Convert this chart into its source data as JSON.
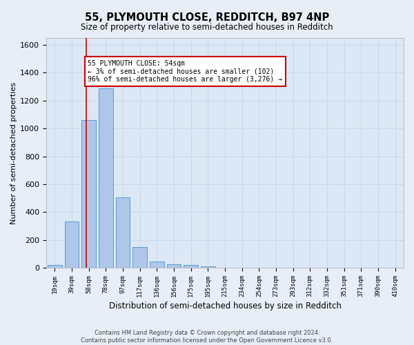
{
  "title": "55, PLYMOUTH CLOSE, REDDITCH, B97 4NP",
  "subtitle": "Size of property relative to semi-detached houses in Redditch",
  "xlabel": "Distribution of semi-detached houses by size in Redditch",
  "ylabel": "Number of semi-detached properties",
  "bar_labels": [
    "19sqm",
    "39sqm",
    "58sqm",
    "78sqm",
    "97sqm",
    "117sqm",
    "136sqm",
    "156sqm",
    "175sqm",
    "195sqm",
    "215sqm",
    "234sqm",
    "254sqm",
    "273sqm",
    "293sqm",
    "312sqm",
    "332sqm",
    "351sqm",
    "371sqm",
    "390sqm",
    "410sqm"
  ],
  "bar_values": [
    20,
    330,
    1060,
    1290,
    505,
    150,
    45,
    25,
    20,
    10,
    0,
    0,
    0,
    0,
    0,
    0,
    0,
    0,
    0,
    0,
    0
  ],
  "bar_color": "#aec6e8",
  "bar_edge_color": "#5b9bd5",
  "property_line_color": "#cc0000",
  "annotation_text": "55 PLYMOUTH CLOSE: 54sqm\n← 3% of semi-detached houses are smaller (102)\n96% of semi-detached houses are larger (3,276) →",
  "annotation_box_color": "#ffffff",
  "annotation_box_edge_color": "#cc0000",
  "ylim": [
    0,
    1650
  ],
  "yticks": [
    0,
    200,
    400,
    600,
    800,
    1000,
    1200,
    1400,
    1600
  ],
  "grid_color": "#c8d4e8",
  "bg_color": "#dce8f5",
  "fig_bg_color": "#e8eef8",
  "footnote": "Contains HM Land Registry data © Crown copyright and database right 2024.\nContains public sector information licensed under the Open Government Licence v3.0."
}
